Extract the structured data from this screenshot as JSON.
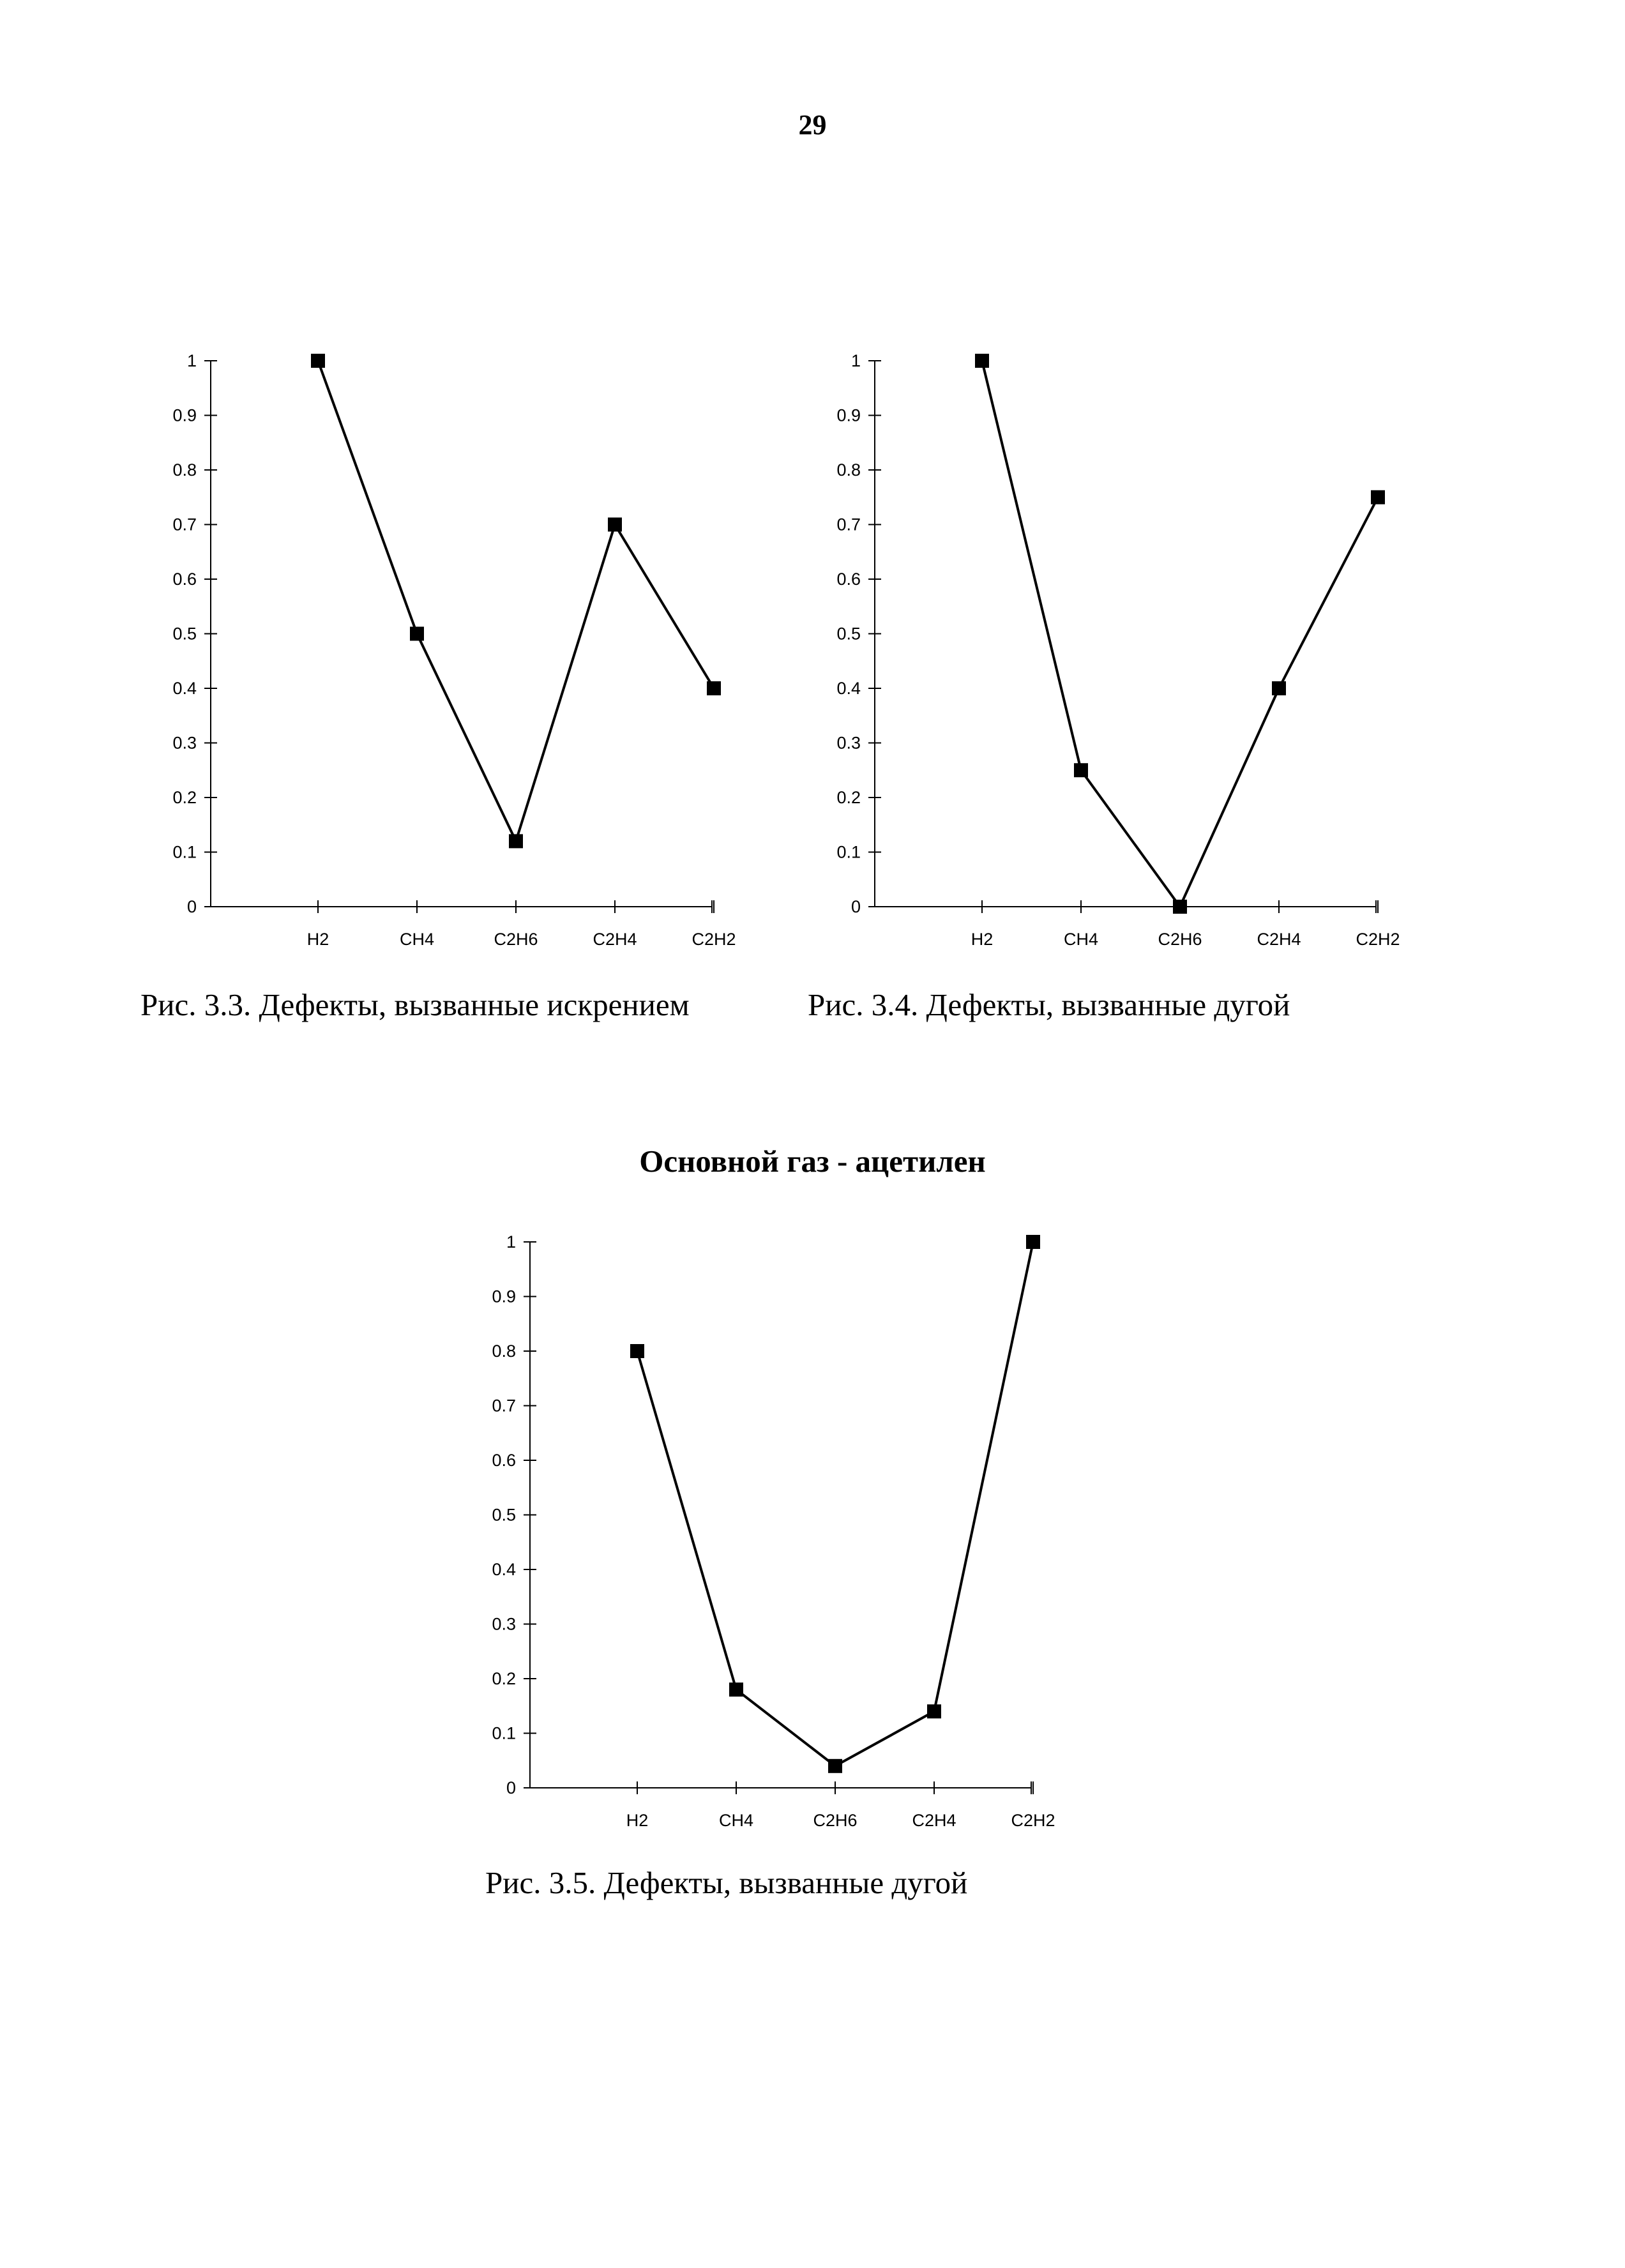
{
  "page": {
    "number": "29",
    "section_title": "Основной газ - ацетилен"
  },
  "captions": [
    "Рис. 3.3. Дефекты, вызванные искрением",
    "Рис. 3.4. Дефекты, вызванные дугой",
    "Рис. 3.5. Дефекты, вызванные дугой"
  ],
  "colors": {
    "line": "#000000",
    "marker": "#000000"
  },
  "chart_data": [
    {
      "type": "line",
      "marker": "square",
      "categories": [
        "H2",
        "CH4",
        "C2H6",
        "C2H4",
        "C2H2"
      ],
      "values": [
        1.0,
        0.5,
        0.12,
        0.7,
        0.4
      ],
      "ylim": [
        0,
        1
      ],
      "yticks": [
        "0",
        "0.1",
        "0.2",
        "0.3",
        "0.4",
        "0.5",
        "0.6",
        "0.7",
        "0.8",
        "0.9",
        "1"
      ],
      "grid": false,
      "legend": "none"
    },
    {
      "type": "line",
      "marker": "square",
      "categories": [
        "H2",
        "CH4",
        "C2H6",
        "C2H4",
        "C2H2"
      ],
      "values": [
        1.0,
        0.25,
        0.0,
        0.4,
        0.75
      ],
      "ylim": [
        0,
        1
      ],
      "yticks": [
        "0",
        "0.1",
        "0.2",
        "0.3",
        "0.4",
        "0.5",
        "0.6",
        "0.7",
        "0.8",
        "0.9",
        "1"
      ],
      "grid": false,
      "legend": "none"
    },
    {
      "type": "line",
      "marker": "square",
      "categories": [
        "H2",
        "CH4",
        "C2H6",
        "C2H4",
        "C2H2"
      ],
      "values": [
        0.8,
        0.18,
        0.04,
        0.14,
        1.0
      ],
      "ylim": [
        0,
        1
      ],
      "yticks": [
        "0",
        "0.1",
        "0.2",
        "0.3",
        "0.4",
        "0.5",
        "0.6",
        "0.7",
        "0.8",
        "0.9",
        "1"
      ],
      "grid": false,
      "legend": "none"
    }
  ]
}
